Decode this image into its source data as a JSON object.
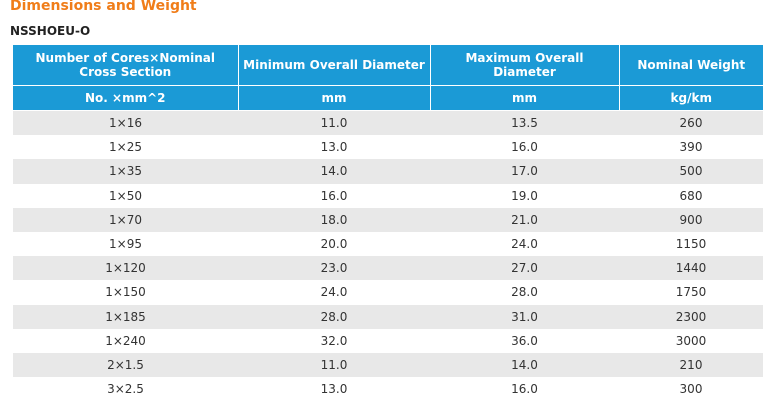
{
  "section_title": "Dimensions and Weight",
  "product_code": "NSSHOEU-O",
  "table": {
    "headers": [
      "Number of Cores×Nominal Cross Section",
      "Minimum Overall Diameter",
      "Maximum Overall Diameter",
      "Nominal Weight"
    ],
    "units": [
      "No. ×mm^2",
      "mm",
      "mm",
      "kg/km"
    ],
    "rows": [
      [
        "1×16",
        "11.0",
        "13.5",
        "260"
      ],
      [
        "1×25",
        "13.0",
        "16.0",
        "390"
      ],
      [
        "1×35",
        "14.0",
        "17.0",
        "500"
      ],
      [
        "1×50",
        "16.0",
        "19.0",
        "680"
      ],
      [
        "1×70",
        "18.0",
        "21.0",
        "900"
      ],
      [
        "1×95",
        "20.0",
        "24.0",
        "1150"
      ],
      [
        "1×120",
        "23.0",
        "27.0",
        "1440"
      ],
      [
        "1×150",
        "24.0",
        "28.0",
        "1750"
      ],
      [
        "1×185",
        "28.0",
        "31.0",
        "2300"
      ],
      [
        "1×240",
        "32.0",
        "36.0",
        "3000"
      ],
      [
        "2×1.5",
        "11.0",
        "14.0",
        "210"
      ],
      [
        "3×2.5",
        "13.0",
        "16.0",
        "300"
      ]
    ]
  },
  "colors": {
    "title": "#f07d19",
    "header_bg": "#1b9ad6",
    "header_text": "#ffffff",
    "row_stripe": "#e8e8e8"
  }
}
